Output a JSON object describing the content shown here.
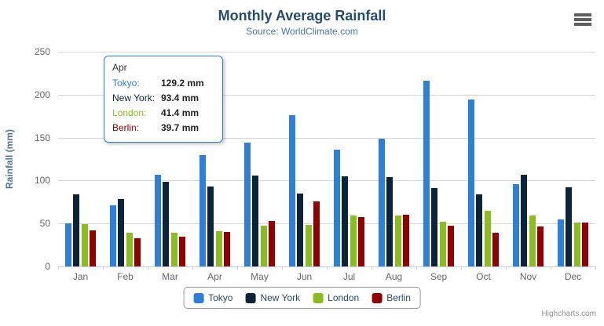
{
  "header": {
    "title": "Monthly Average Rainfall",
    "subtitle": "Source: WorldClimate.com"
  },
  "chart_data": {
    "type": "bar",
    "title": "Monthly Average Rainfall",
    "subtitle": "Source: WorldClimate.com",
    "categories": [
      "Jan",
      "Feb",
      "Mar",
      "Apr",
      "May",
      "Jun",
      "Jul",
      "Aug",
      "Sep",
      "Oct",
      "Nov",
      "Dec"
    ],
    "series": [
      {
        "name": "Tokyo",
        "color": "#2f7ed8",
        "values": [
          49.9,
          71.5,
          106.4,
          129.2,
          144.0,
          176.0,
          135.6,
          148.5,
          216.4,
          194.1,
          95.6,
          54.4
        ]
      },
      {
        "name": "New York",
        "color": "#0d233a",
        "values": [
          83.6,
          78.8,
          98.5,
          93.4,
          106.0,
          84.5,
          105.0,
          104.3,
          91.2,
          83.5,
          106.6,
          92.3
        ]
      },
      {
        "name": "London",
        "color": "#8bbc21",
        "values": [
          48.9,
          38.8,
          39.3,
          41.4,
          47.0,
          48.3,
          59.0,
          59.6,
          52.4,
          65.2,
          59.3,
          51.2
        ]
      },
      {
        "name": "Berlin",
        "color": "#910000",
        "values": [
          42.4,
          33.2,
          34.5,
          39.7,
          52.6,
          75.5,
          57.4,
          60.4,
          47.6,
          39.1,
          46.8,
          51.1
        ]
      }
    ],
    "xlabel": "",
    "ylabel": "Rainfall (mm)",
    "ylim": [
      0,
      250
    ],
    "y_ticks": [
      0,
      50,
      100,
      150,
      200,
      250
    ],
    "grid": true,
    "legend_position": "bottom-center"
  },
  "y_axis": {
    "title": "Rainfall (mm)"
  },
  "tooltip": {
    "category": "Apr",
    "rows": [
      {
        "label": "Tokyo:",
        "value": "129.2 mm",
        "color": "#2f7ed8"
      },
      {
        "label": "New York:",
        "value": "93.4 mm",
        "color": "#0d233a"
      },
      {
        "label": "London:",
        "value": "41.4 mm",
        "color": "#8bbc21"
      },
      {
        "label": "Berlin:",
        "value": "39.7 mm",
        "color": "#910000"
      }
    ],
    "border_color": "#2f7ed8"
  },
  "legend": {
    "items": [
      {
        "label": "Tokyo",
        "color": "#2f7ed8"
      },
      {
        "label": "New York",
        "color": "#0d233a"
      },
      {
        "label": "London",
        "color": "#8bbc21"
      },
      {
        "label": "Berlin",
        "color": "#910000"
      }
    ]
  },
  "credits": {
    "label": "Highcharts.com"
  },
  "colors": {
    "grid": "#d8d8d8",
    "axis_line": "#c0d0e0",
    "tick_label": "#666666",
    "title": "#274b6d",
    "subtitle": "#4d759e"
  }
}
